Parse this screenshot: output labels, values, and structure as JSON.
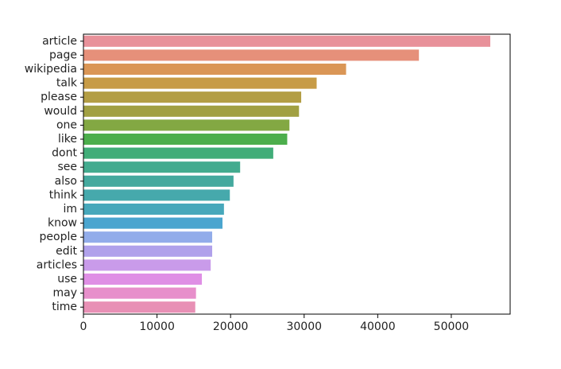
{
  "chart_data": {
    "type": "bar",
    "orientation": "horizontal",
    "title": "",
    "xlabel": "",
    "ylabel": "",
    "xlim": [
      0,
      58000
    ],
    "xticks": [
      0,
      10000,
      20000,
      30000,
      40000,
      50000
    ],
    "xtick_labels": [
      "0",
      "10000",
      "20000",
      "30000",
      "40000",
      "50000"
    ],
    "grid": false,
    "categories": [
      "article",
      "page",
      "wikipedia",
      "talk",
      "please",
      "would",
      "one",
      "like",
      "dont",
      "see",
      "also",
      "think",
      "im",
      "know",
      "people",
      "edit",
      "articles",
      "use",
      "may",
      "time"
    ],
    "values": [
      55300,
      45600,
      35700,
      31700,
      29600,
      29300,
      28000,
      27700,
      25800,
      21300,
      20400,
      19900,
      19100,
      18900,
      17500,
      17500,
      17300,
      16100,
      15300,
      15200
    ],
    "colors": [
      "#e8919a",
      "#e6907a",
      "#da9656",
      "#c79b46",
      "#b39e44",
      "#a1a042",
      "#83a843",
      "#4cae4c",
      "#41ad78",
      "#43ab8f",
      "#44a99e",
      "#46a9ac",
      "#47a8bb",
      "#4aa5cf",
      "#92acea",
      "#b0a1eb",
      "#c99bea",
      "#df8fe5",
      "#e78fcb",
      "#e890b5"
    ]
  }
}
